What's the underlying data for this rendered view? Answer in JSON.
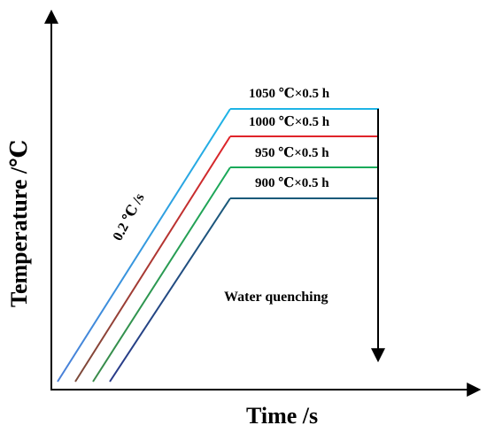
{
  "axes": {
    "x_title": "Time /s",
    "y_title": "Temperature /℃"
  },
  "heating_rate": "0.2 ℃ /s",
  "treatments": [
    {
      "label": "1050 ℃×0.5 h",
      "color": "#1eb4e6"
    },
    {
      "label": "1000 ℃×0.5 h",
      "color": "#e0242a"
    },
    {
      "label": "950 ℃×0.5 h",
      "color": "#1aaa5a"
    },
    {
      "label": "900 ℃×0.5 h",
      "color": "#1a5a7a"
    }
  ],
  "ramp_gradients": [
    [
      "#4a7fd8",
      "#1eb4e6"
    ],
    [
      "#7a4a3a",
      "#e0242a"
    ],
    [
      "#3a8a4a",
      "#1aaa5a"
    ],
    [
      "#2a3a8a",
      "#1a5a7a"
    ]
  ],
  "quench_label": "Water quenching"
}
